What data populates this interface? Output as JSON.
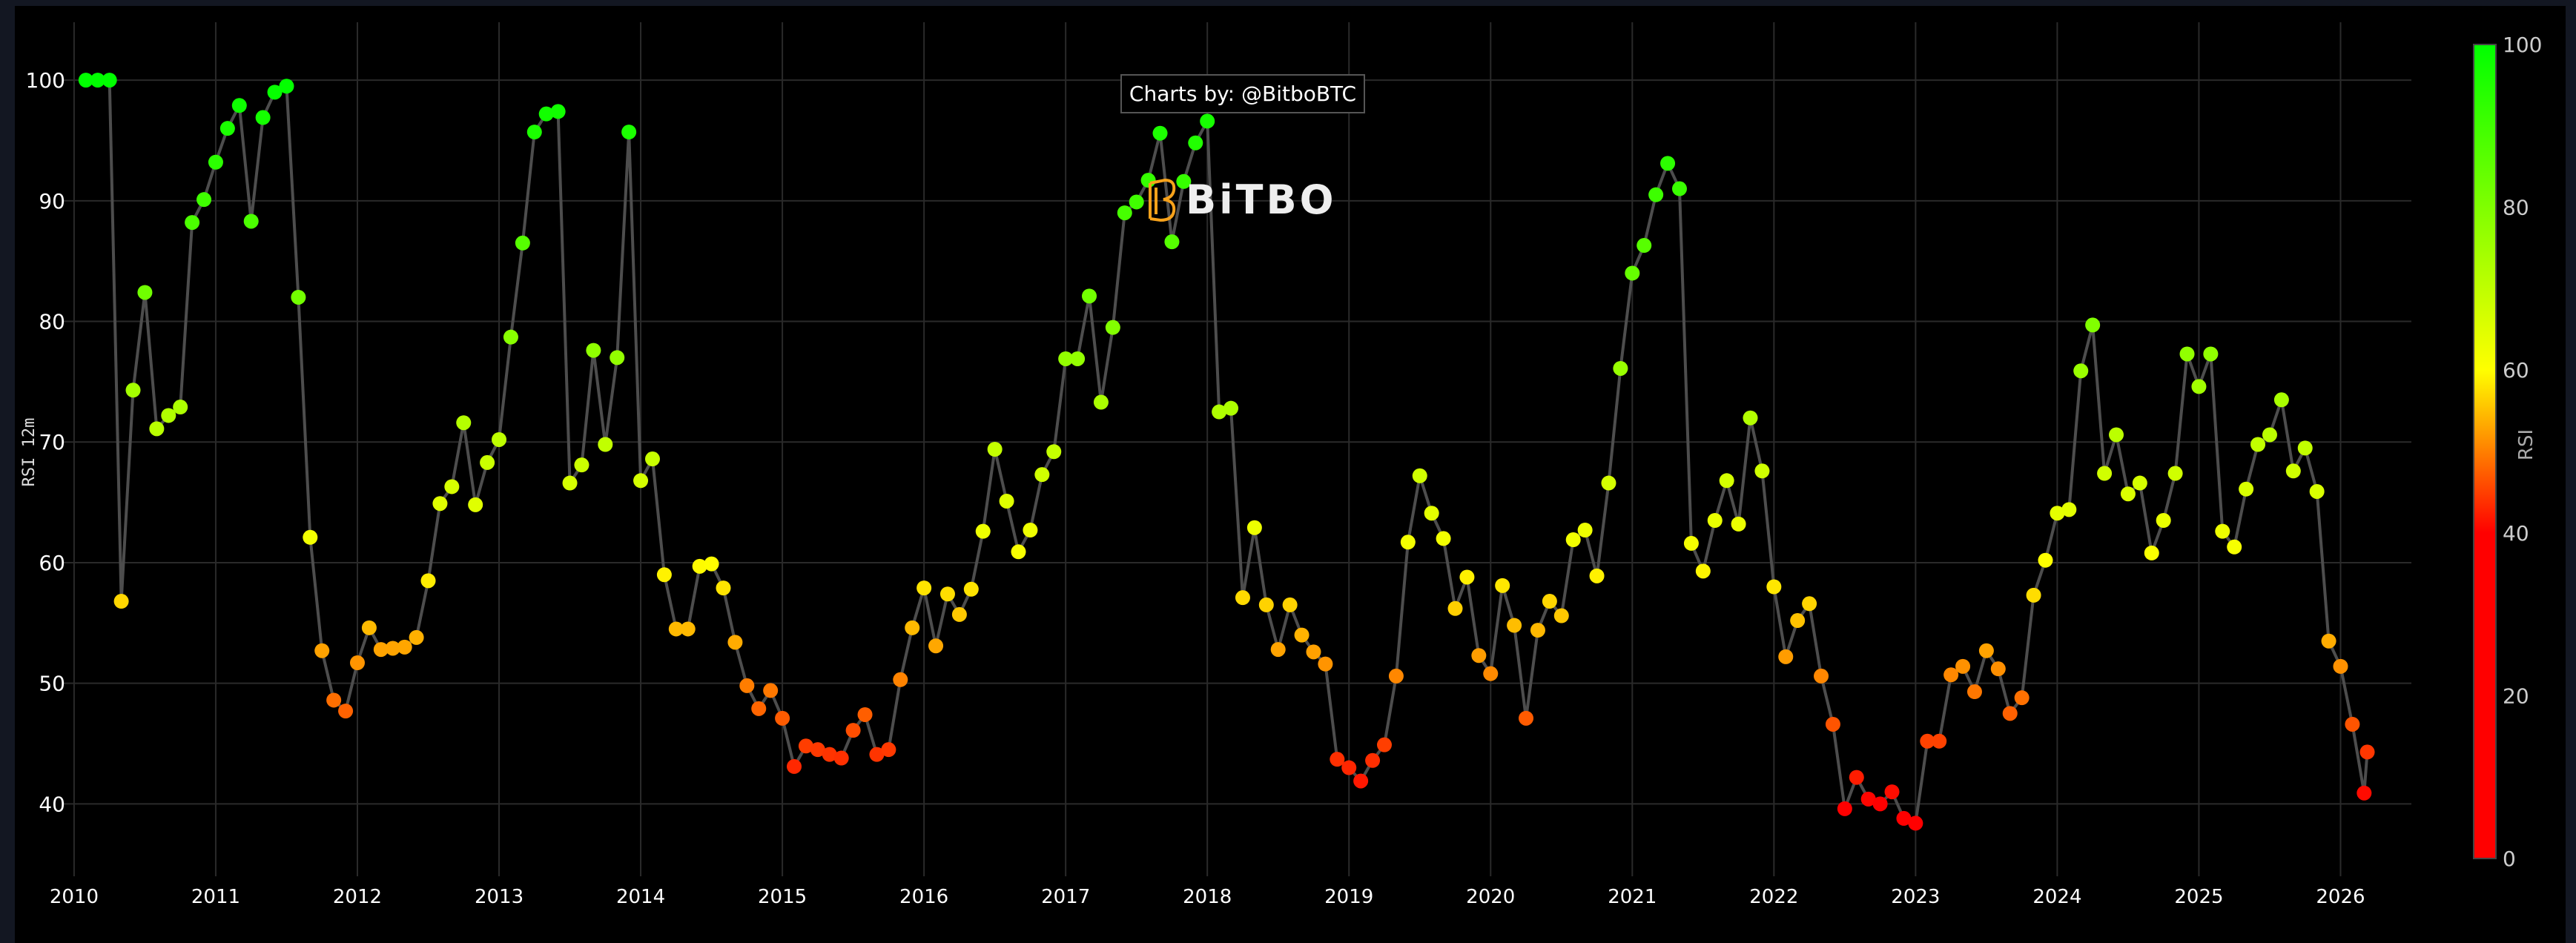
{
  "watermark": {
    "credit": "Charts by: @BitboBTC",
    "logo": "BiTBO"
  },
  "colors": {
    "background": "#131722",
    "plot_bg": "#000000",
    "grid": "#2a2a2a",
    "line": "#4d4d4d",
    "low": "#ff0000",
    "mid": "#ffff00",
    "high": "#00ff00",
    "logo_accent": "#f7a21b"
  },
  "chart_data": {
    "type": "scatter",
    "mode": "lines+markers",
    "title": "",
    "xlabel": "",
    "ylabel": "RSI 12m",
    "ylim": [
      34,
      104.8
    ],
    "xlim": [
      "2009-12",
      "2026-07"
    ],
    "grid": true,
    "x_ticks": [
      "2010",
      "2011",
      "2012",
      "2013",
      "2014",
      "2015",
      "2016",
      "2017",
      "2018",
      "2019",
      "2020",
      "2021",
      "2022",
      "2023",
      "2024",
      "2025",
      "2026"
    ],
    "y_ticks": [
      40,
      50,
      60,
      70,
      80,
      90,
      100
    ],
    "colorbar": {
      "title": "RSI",
      "ticks": [
        0,
        20,
        40,
        60,
        80,
        100
      ],
      "range": [
        0,
        100
      ],
      "scale": [
        [
          0,
          "#ff0000"
        ],
        [
          40,
          "#ff0000"
        ],
        [
          60,
          "#ffff00"
        ],
        [
          100,
          "#00ff00"
        ]
      ]
    },
    "series": [
      {
        "x": [
          "2010-02",
          "2010-03",
          "2010-04",
          "2010-05",
          "2010-06",
          "2010-07",
          "2010-08",
          "2010-09",
          "2010-10",
          "2010-11",
          "2010-12",
          "2011-01",
          "2011-02",
          "2011-03",
          "2011-04",
          "2011-05",
          "2011-06",
          "2011-07",
          "2011-08",
          "2011-09",
          "2011-10",
          "2011-11",
          "2011-12",
          "2012-01",
          "2012-02",
          "2012-03",
          "2012-04",
          "2012-05",
          "2012-06",
          "2012-07",
          "2012-08",
          "2012-09",
          "2012-10",
          "2012-11",
          "2012-12",
          "2013-01",
          "2013-02",
          "2013-03",
          "2013-04",
          "2013-05",
          "2013-06",
          "2013-07",
          "2013-08",
          "2013-09",
          "2013-10",
          "2013-11",
          "2013-12",
          "2014-01",
          "2014-02",
          "2014-03",
          "2014-04",
          "2014-05",
          "2014-06",
          "2014-07",
          "2014-08",
          "2014-09",
          "2014-10",
          "2014-11",
          "2014-12",
          "2015-01",
          "2015-02",
          "2015-03",
          "2015-04",
          "2015-05",
          "2015-06",
          "2015-07",
          "2015-08",
          "2015-09",
          "2015-10",
          "2015-11",
          "2015-12",
          "2016-01",
          "2016-02",
          "2016-03",
          "2016-04",
          "2016-05",
          "2016-06",
          "2016-07",
          "2016-08",
          "2016-09",
          "2016-10",
          "2016-11",
          "2016-12",
          "2017-01",
          "2017-02",
          "2017-03",
          "2017-04",
          "2017-05",
          "2017-06",
          "2017-07",
          "2017-08",
          "2017-09",
          "2017-10",
          "2017-11",
          "2017-12",
          "2018-01",
          "2018-02",
          "2018-03",
          "2018-04",
          "2018-05",
          "2018-06",
          "2018-07",
          "2018-08",
          "2018-09",
          "2018-10",
          "2018-11",
          "2018-12",
          "2019-01",
          "2019-02",
          "2019-03",
          "2019-04",
          "2019-05",
          "2019-06",
          "2019-07",
          "2019-08",
          "2019-09",
          "2019-10",
          "2019-11",
          "2019-12",
          "2020-01",
          "2020-02",
          "2020-03",
          "2020-04",
          "2020-05",
          "2020-06",
          "2020-07",
          "2020-08",
          "2020-09",
          "2020-10",
          "2020-11",
          "2020-12",
          "2021-01",
          "2021-02",
          "2021-03",
          "2021-04",
          "2021-05",
          "2021-06",
          "2021-07",
          "2021-08",
          "2021-09",
          "2021-10",
          "2021-11",
          "2021-12",
          "2022-01",
          "2022-02",
          "2022-03",
          "2022-04",
          "2022-05",
          "2022-06",
          "2022-07",
          "2022-08",
          "2022-09",
          "2022-10",
          "2022-11",
          "2022-12",
          "2023-01",
          "2023-02",
          "2023-03",
          "2023-04",
          "2023-05",
          "2023-06",
          "2023-07",
          "2023-08",
          "2023-09",
          "2023-10",
          "2023-11",
          "2023-12",
          "2024-01",
          "2024-02",
          "2024-03",
          "2024-04",
          "2024-05",
          "2024-06",
          "2024-07",
          "2024-08",
          "2024-09",
          "2024-10",
          "2024-11",
          "2024-12",
          "2025-01",
          "2025-02",
          "2025-03",
          "2025-04",
          "2025-05",
          "2025-06",
          "2025-07",
          "2025-08",
          "2025-09",
          "2025-10",
          "2025-11",
          "2025-12",
          "2026-01",
          "2026-02",
          "2026-03",
          "2026-03-09"
        ],
        "y": [
          100,
          100,
          100,
          56.8,
          74.3,
          82.4,
          71.1,
          72.2,
          72.9,
          88.2,
          90.1,
          93.2,
          96.0,
          97.9,
          88.3,
          96.9,
          99.0,
          99.5,
          82.0,
          62.1,
          52.7,
          48.6,
          47.7,
          51.7,
          54.6,
          52.8,
          52.9,
          53.0,
          53.8,
          58.5,
          64.9,
          66.3,
          71.6,
          64.8,
          68.3,
          70.2,
          78.7,
          86.5,
          95.7,
          97.2,
          97.4,
          66.6,
          68.1,
          77.6,
          69.8,
          77.0,
          95.7,
          66.8,
          68.6,
          59.0,
          54.5,
          54.5,
          59.7,
          59.9,
          57.9,
          53.4,
          49.8,
          47.9,
          49.4,
          47.1,
          43.1,
          44.8,
          44.5,
          44.1,
          43.8,
          46.1,
          47.4,
          44.1,
          44.5,
          50.3,
          54.6,
          57.9,
          53.1,
          57.4,
          55.7,
          57.8,
          62.6,
          69.4,
          65.1,
          60.9,
          62.7,
          67.3,
          69.2,
          76.9,
          76.9,
          82.1,
          73.3,
          79.5,
          89.0,
          89.9,
          91.7,
          95.6,
          86.6,
          91.6,
          94.8,
          96.6,
          72.5,
          72.8,
          57.1,
          62.9,
          56.5,
          52.8,
          56.5,
          54.0,
          52.6,
          51.6,
          43.7,
          43.0,
          41.9,
          43.6,
          44.9,
          50.6,
          61.7,
          67.2,
          64.1,
          62.0,
          56.2,
          58.8,
          52.3,
          50.8,
          58.1,
          54.8,
          47.1,
          54.4,
          56.8,
          55.6,
          61.9,
          62.7,
          58.9,
          66.6,
          76.1,
          84.0,
          86.3,
          90.5,
          93.1,
          91.0,
          61.6,
          59.3,
          63.5,
          66.8,
          63.2,
          72.0,
          67.6,
          58.0,
          52.2,
          55.2,
          56.6,
          50.6,
          46.6,
          39.6,
          42.2,
          40.4,
          40.0,
          41.0,
          38.8,
          38.4,
          45.2,
          45.2,
          50.7,
          51.4,
          49.3,
          52.7,
          51.2,
          47.5,
          48.8,
          57.3,
          60.2,
          64.1,
          64.4,
          75.9,
          79.7,
          67.4,
          70.6,
          65.7,
          66.6,
          60.8,
          63.5,
          67.4,
          77.3,
          74.6,
          77.3,
          62.6,
          61.3,
          66.1,
          69.8,
          70.6,
          73.5,
          67.6,
          69.5,
          65.9,
          53.5,
          51.4,
          46.6,
          40.9,
          44.3
        ]
      }
    ]
  }
}
